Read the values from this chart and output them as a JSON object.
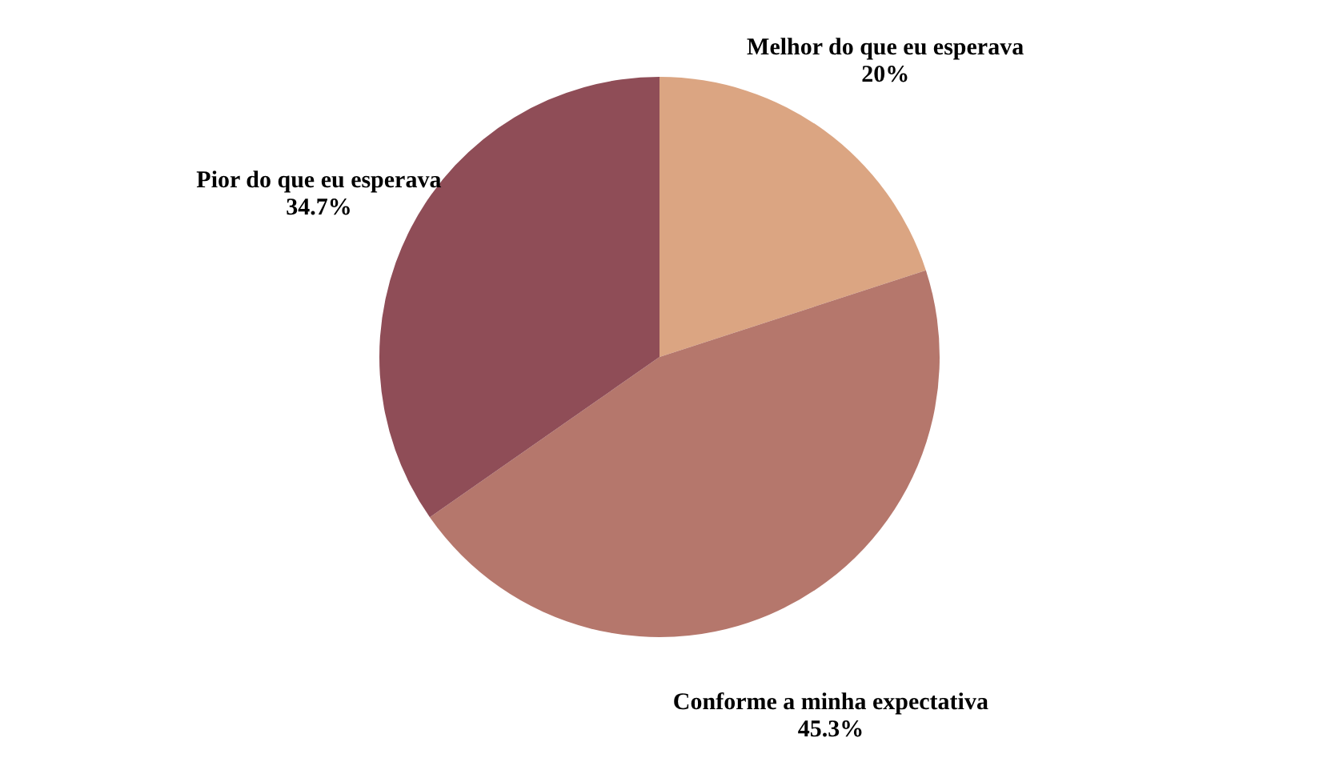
{
  "chart_data": {
    "type": "pie",
    "categories": [
      "Melhor do que eu esperava",
      "Conforme a minha expectativa",
      "Pior do que eu esperava"
    ],
    "values": [
      20,
      45.3,
      34.7
    ],
    "value_labels": [
      "20%",
      "45.3%",
      "34.7%"
    ],
    "colors": [
      "#dba582",
      "#b5776c",
      "#8f4d57"
    ]
  }
}
